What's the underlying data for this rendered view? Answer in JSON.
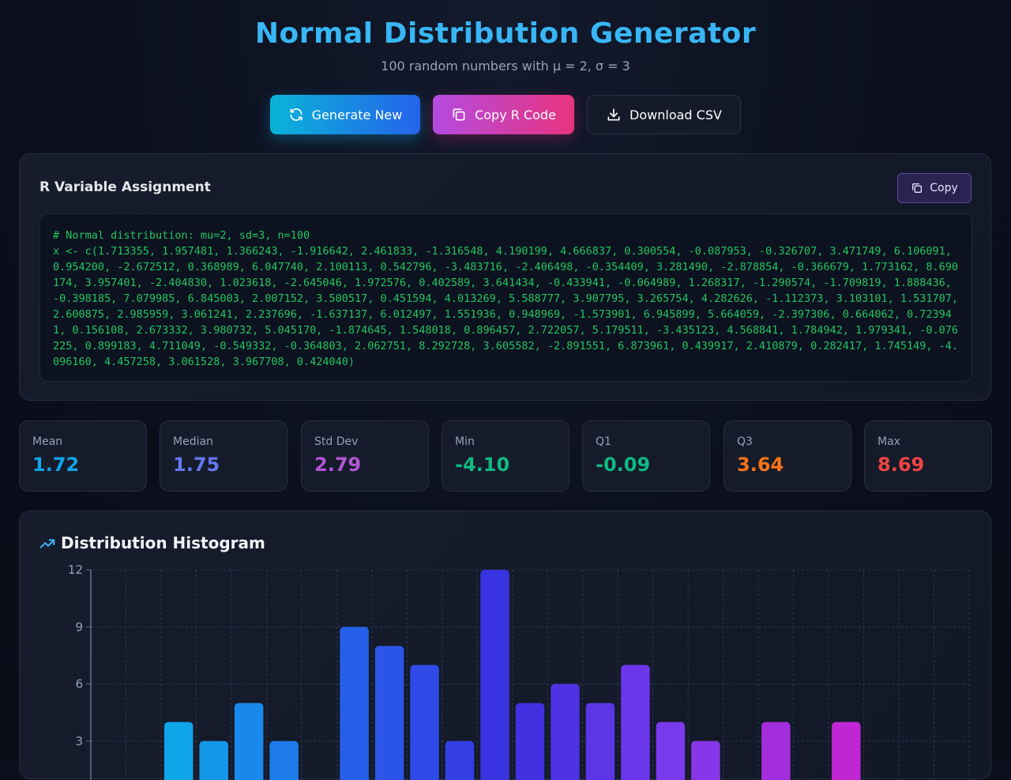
{
  "header": {
    "title": "Normal Distribution Generator",
    "subtitle": "100 random numbers with μ = 2, σ = 3"
  },
  "actions": {
    "generate_label": "Generate New",
    "copy_r_label": "Copy R Code",
    "download_label": "Download CSV"
  },
  "code_panel": {
    "title": "R Variable Assignment",
    "copy_label": "Copy",
    "comment": "# Normal distribution: mu=2, sd=3, n=100",
    "code": "x <- c(1.713355, 1.957481, 1.366243, -1.916642, 2.461833, -1.316548, 4.190199, 4.666837, 0.300554, -0.087953, -0.326707, 3.471749, 6.106091, 0.954200, -2.672512, 0.368989, 6.047740, 2.100113, 0.542796, -3.483716, -2.406498, -0.354409, 3.281490, -2.878854, -0.366679, 1.773162, 8.690174, 3.957401, -2.404830, 1.023618, -2.645046, 1.972576, 0.402589, 3.641434, -0.433941, -0.064989, 1.268317, -1.290574, -1.709819, 1.888436, -0.398185, 7.079985, 6.845003, 2.007152, 3.500517, 0.451594, 4.013269, 5.588777, 3.907795, 3.265754, 4.282626, -1.112373, 3.103101, 1.531707, 2.600875, 2.985959, 3.061241, 2.237696, -1.637137, 6.012497, 1.551936, 0.948969, -1.573901, 6.945899, 5.664059, -2.397306, 0.664062, 0.723941, 0.156108, 2.673332, 3.980732, 5.045170, -1.874645, 1.548018, 0.896457, 2.722057, 5.179511, -3.435123, 4.568841, 1.784942, 1.979341, -0.076225, 0.899183, 4.711049, -0.549332, -0.364803, 2.062751, 8.292728, 3.605582, -2.891551, 6.873961, 0.439917, 2.410879, 0.282417, 1.745149, -4.096160, 4.457258, 3.061528, 3.967708, 0.424040)"
  },
  "stats": [
    {
      "label": "Mean",
      "value": "1.72",
      "color": "#0ea5e9"
    },
    {
      "label": "Median",
      "value": "1.75",
      "color": "#6378f1"
    },
    {
      "label": "Std Dev",
      "value": "2.79",
      "color": "#b455d8"
    },
    {
      "label": "Min",
      "value": "-4.10",
      "color": "#10b981"
    },
    {
      "label": "Q1",
      "value": "-0.09",
      "color": "#10b981"
    },
    {
      "label": "Q3",
      "value": "3.64",
      "color": "#f97316"
    },
    {
      "label": "Max",
      "value": "8.69",
      "color": "#ef4444"
    }
  ],
  "histogram": {
    "title": "Distribution Histogram"
  },
  "chart_data": {
    "type": "bar",
    "title": "Distribution Histogram",
    "ylim": [
      0,
      12
    ],
    "yticks": [
      3,
      6,
      9,
      12
    ],
    "grid": true,
    "bin_slots": 25,
    "bars": [
      {
        "slot": 2,
        "count": 4
      },
      {
        "slot": 3,
        "count": 3
      },
      {
        "slot": 4,
        "count": 5
      },
      {
        "slot": 5,
        "count": 3
      },
      {
        "slot": 6,
        "count": 0
      },
      {
        "slot": 7,
        "count": 9
      },
      {
        "slot": 8,
        "count": 8
      },
      {
        "slot": 9,
        "count": 7
      },
      {
        "slot": 10,
        "count": 3
      },
      {
        "slot": 11,
        "count": 12
      },
      {
        "slot": 12,
        "count": 5
      },
      {
        "slot": 13,
        "count": 6
      },
      {
        "slot": 14,
        "count": 5
      },
      {
        "slot": 15,
        "count": 7
      },
      {
        "slot": 16,
        "count": 4
      },
      {
        "slot": 17,
        "count": 3
      },
      {
        "slot": 18,
        "count": 0
      },
      {
        "slot": 19,
        "count": 4
      },
      {
        "slot": 20,
        "count": 0
      },
      {
        "slot": 21,
        "count": 4
      }
    ],
    "bar_colors": [
      "#0ea5e9",
      "#2563eb",
      "#3b2fe0",
      "#7c3aed",
      "#c026d3"
    ]
  }
}
